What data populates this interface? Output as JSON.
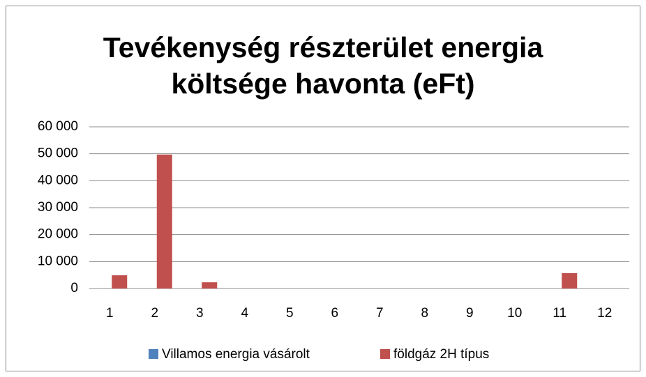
{
  "chart_data": {
    "type": "bar",
    "title": "Tevékenység részterület energia költsége havonta (eFt)",
    "categories": [
      "1",
      "2",
      "3",
      "4",
      "5",
      "6",
      "7",
      "8",
      "9",
      "10",
      "11",
      "12"
    ],
    "series": [
      {
        "name": "Villamos energia vásárolt",
        "color": "#4f81bd",
        "values": [
          0,
          0,
          0,
          0,
          0,
          0,
          0,
          0,
          0,
          0,
          0,
          0
        ]
      },
      {
        "name": "földgáz 2H típus",
        "color": "#c0504d",
        "values": [
          4900,
          49700,
          2300,
          0,
          0,
          0,
          0,
          0,
          0,
          0,
          5700,
          0
        ]
      }
    ],
    "ylim": [
      0,
      60000
    ],
    "yticks": [
      {
        "value": 0,
        "label": "0"
      },
      {
        "value": 10000,
        "label": "10 000"
      },
      {
        "value": 20000,
        "label": "20 000"
      },
      {
        "value": 30000,
        "label": "30 000"
      },
      {
        "value": 40000,
        "label": "40 000"
      },
      {
        "value": 50000,
        "label": "50 000"
      },
      {
        "value": 60000,
        "label": "60 000"
      }
    ],
    "grid": true,
    "legend": "bottom"
  }
}
